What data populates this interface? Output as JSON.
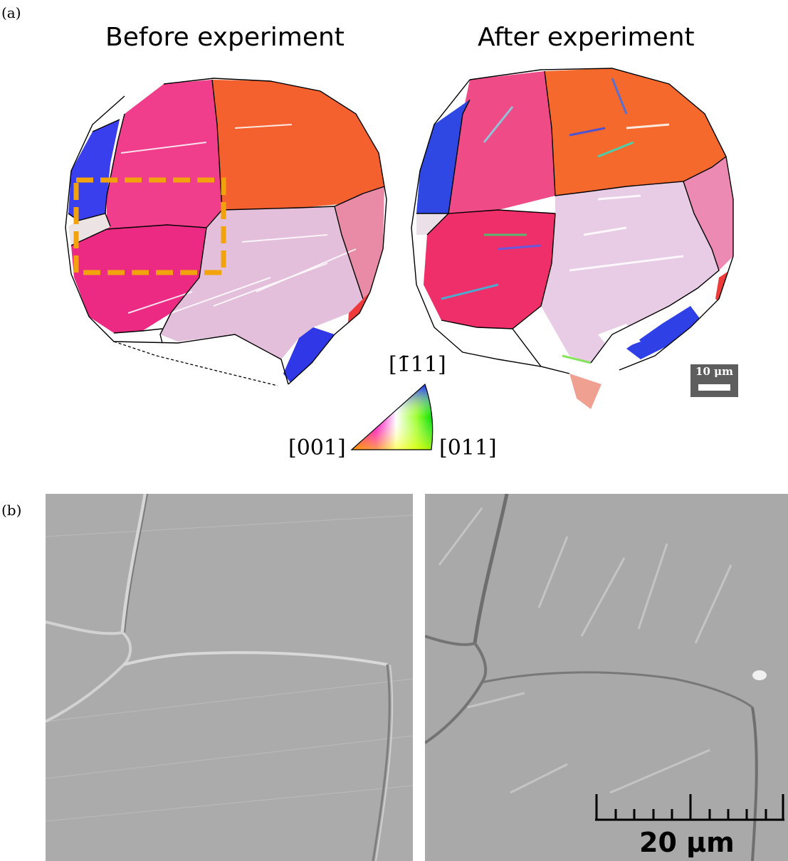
{
  "panel_a": {
    "label": "(a)",
    "before_title": "Before experiment",
    "after_title": "After experiment",
    "scale_bar_label": "10 μm"
  },
  "ipf_legend": {
    "top_label": "[1̄11]",
    "left_label": "[001]",
    "right_label": "[011]",
    "corner_colors": {
      "001": "#ff0000",
      "011": "#00dd00",
      "111": "#0000ff"
    }
  },
  "panel_b": {
    "label": "(b)",
    "scale_bar_label": "20 μm"
  },
  "colors": {
    "highlight_box": "#f2a30c",
    "grain_blue": "#3344e8",
    "grain_pink": "#ee2f86",
    "grain_orange": "#f36030",
    "grain_lilac": "#e4bfdb",
    "sem_gray": "#a9a9a9"
  }
}
